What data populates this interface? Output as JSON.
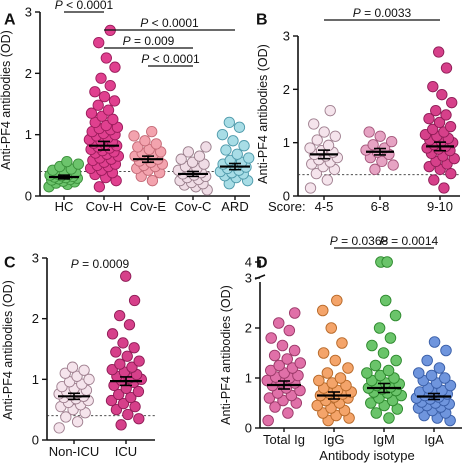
{
  "chart_data": [
    {
      "panel": "A",
      "type": "scatter",
      "ylabel": "Anti-PF4 antibodies (OD)",
      "ylim": [
        0,
        3
      ],
      "yticks": [
        "0",
        "1",
        "2",
        "3"
      ],
      "reference_line": 0.4,
      "categories": [
        "HC",
        "Cov-H",
        "Cov-E",
        "Cov-C",
        "ARD"
      ],
      "colors": {
        "HC": {
          "fill": "#6cc46c",
          "stroke": "#3a8f3a"
        },
        "Cov-H": {
          "fill": "#e0408f",
          "stroke": "#9c1c5c"
        },
        "Cov-E": {
          "fill": "#f3a3ae",
          "stroke": "#c46a77"
        },
        "Cov-C": {
          "fill": "#f0dde6",
          "stroke": "#9a7f8c"
        },
        "ARD": {
          "fill": "#a8dde6",
          "stroke": "#4f9aab"
        }
      },
      "groups": [
        {
          "name": "HC",
          "mean": 0.31,
          "sem": 0.03,
          "values": [
            0.15,
            0.19,
            0.21,
            0.23,
            0.24,
            0.26,
            0.27,
            0.28,
            0.29,
            0.3,
            0.31,
            0.32,
            0.33,
            0.34,
            0.35,
            0.36,
            0.38,
            0.4,
            0.42,
            0.44,
            0.48,
            0.52,
            0.56
          ]
        },
        {
          "name": "Cov-H",
          "mean": 0.82,
          "sem": 0.07,
          "values": [
            0.15,
            0.25,
            0.3,
            0.35,
            0.38,
            0.42,
            0.45,
            0.48,
            0.5,
            0.52,
            0.55,
            0.58,
            0.6,
            0.62,
            0.65,
            0.68,
            0.7,
            0.72,
            0.74,
            0.76,
            0.78,
            0.8,
            0.82,
            0.84,
            0.86,
            0.88,
            0.9,
            0.92,
            0.95,
            0.98,
            1.0,
            1.02,
            1.05,
            1.08,
            1.1,
            1.12,
            1.15,
            1.2,
            1.25,
            1.3,
            1.35,
            1.4,
            1.48,
            1.55,
            1.62,
            1.7,
            1.8,
            1.92,
            2.1,
            2.25,
            2.5,
            2.7
          ]
        },
        {
          "name": "Cov-E",
          "mean": 0.6,
          "sem": 0.05,
          "values": [
            0.25,
            0.32,
            0.38,
            0.42,
            0.45,
            0.48,
            0.5,
            0.52,
            0.55,
            0.57,
            0.6,
            0.62,
            0.65,
            0.68,
            0.7,
            0.72,
            0.76,
            0.8,
            0.85,
            0.9,
            0.98,
            1.05
          ]
        },
        {
          "name": "Cov-C",
          "mean": 0.36,
          "sem": 0.04,
          "values": [
            0.1,
            0.15,
            0.18,
            0.2,
            0.22,
            0.25,
            0.27,
            0.3,
            0.32,
            0.34,
            0.36,
            0.38,
            0.4,
            0.42,
            0.45,
            0.48,
            0.52,
            0.55,
            0.6,
            0.65,
            0.72,
            0.8
          ]
        },
        {
          "name": "ARD",
          "mean": 0.48,
          "sem": 0.05,
          "values": [
            0.2,
            0.25,
            0.3,
            0.33,
            0.36,
            0.38,
            0.4,
            0.42,
            0.45,
            0.47,
            0.5,
            0.52,
            0.55,
            0.58,
            0.62,
            0.68,
            0.75,
            0.82,
            0.9,
            1.0,
            1.12,
            1.2
          ]
        }
      ],
      "comparisons": [
        {
          "from": "HC",
          "to": "Cov-H",
          "label": "P < 0.0001"
        },
        {
          "from": "Cov-H",
          "to": "ARD",
          "label": "P < 0.0001"
        },
        {
          "from": "Cov-H",
          "to": "Cov-C",
          "label": "P = 0.009"
        },
        {
          "from": "Cov-E",
          "to": "Cov-C",
          "label": "P < 0.0001"
        }
      ]
    },
    {
      "panel": "B",
      "type": "scatter",
      "ylabel": "Anti-PF4 antibodies (OD)",
      "ylim": [
        0,
        3
      ],
      "yticks": [
        "0",
        "1",
        "2",
        "3"
      ],
      "reference_line": 0.4,
      "xlabel_prefix": "Score:",
      "categories": [
        "4-5",
        "6-8",
        "9-10"
      ],
      "colors": {
        "4-5": {
          "fill": "#f5e4ec",
          "stroke": "#a08090"
        },
        "6-8": {
          "fill": "#e6a3c3",
          "stroke": "#a5587c"
        },
        "9-10": {
          "fill": "#d6408a",
          "stroke": "#8e1c56"
        }
      },
      "groups": [
        {
          "name": "4-5",
          "mean": 0.78,
          "sem": 0.08,
          "values": [
            0.15,
            0.3,
            0.42,
            0.5,
            0.55,
            0.6,
            0.64,
            0.68,
            0.72,
            0.75,
            0.78,
            0.82,
            0.85,
            0.9,
            0.95,
            1.05,
            1.12,
            1.2,
            1.35,
            1.6
          ]
        },
        {
          "name": "6-8",
          "mean": 0.83,
          "sem": 0.06,
          "values": [
            0.5,
            0.58,
            0.65,
            0.72,
            0.78,
            0.82,
            0.86,
            0.9,
            0.96,
            1.02,
            1.12,
            1.2
          ]
        },
        {
          "name": "9-10",
          "mean": 0.93,
          "sem": 0.08,
          "values": [
            0.15,
            0.3,
            0.42,
            0.5,
            0.55,
            0.6,
            0.65,
            0.7,
            0.75,
            0.8,
            0.85,
            0.88,
            0.9,
            0.93,
            0.96,
            1.0,
            1.02,
            1.05,
            1.08,
            1.12,
            1.15,
            1.2,
            1.25,
            1.3,
            1.38,
            1.45,
            1.52,
            1.6,
            1.75,
            1.9,
            2.05,
            2.4,
            2.7
          ]
        }
      ],
      "comparisons": [
        {
          "from": "4-5",
          "to": "9-10",
          "label": "P = 0.0033"
        }
      ]
    },
    {
      "panel": "C",
      "type": "scatter",
      "ylabel": "Anti-PF4 antibodies (OD)",
      "ylim": [
        0,
        3
      ],
      "yticks": [
        "0",
        "1",
        "2",
        "3"
      ],
      "reference_line": 0.4,
      "categories": [
        "Non-ICU",
        "ICU"
      ],
      "colors": {
        "Non-ICU": {
          "fill": "#f5e4ec",
          "stroke": "#a08090"
        },
        "ICU": {
          "fill": "#d6408a",
          "stroke": "#8e1c56"
        }
      },
      "groups": [
        {
          "name": "Non-ICU",
          "mean": 0.72,
          "sem": 0.05,
          "values": [
            0.2,
            0.3,
            0.38,
            0.45,
            0.5,
            0.55,
            0.58,
            0.62,
            0.65,
            0.68,
            0.7,
            0.72,
            0.74,
            0.76,
            0.78,
            0.8,
            0.82,
            0.85,
            0.88,
            0.92,
            0.96,
            1.0,
            1.05,
            1.1,
            1.15,
            1.2
          ]
        },
        {
          "name": "ICU",
          "mean": 0.97,
          "sem": 0.07,
          "values": [
            0.25,
            0.35,
            0.42,
            0.5,
            0.55,
            0.6,
            0.65,
            0.7,
            0.75,
            0.8,
            0.85,
            0.9,
            0.95,
            0.98,
            1.0,
            1.02,
            1.05,
            1.08,
            1.12,
            1.16,
            1.2,
            1.25,
            1.3,
            1.38,
            1.45,
            1.52,
            1.6,
            1.75,
            1.9,
            2.05,
            2.3,
            2.7
          ]
        }
      ],
      "comparisons": [
        {
          "from": "Non-ICU",
          "to": "ICU",
          "label": "P = 0.0009",
          "style": "text-only"
        }
      ]
    },
    {
      "panel": "D",
      "type": "scatter",
      "ylabel": "Anti-PF4 antibodies (OD)",
      "xlabel": "Antibody isotype",
      "ylim": [
        0,
        4
      ],
      "axis_break": [
        3,
        4
      ],
      "yticks": [
        "0",
        "1",
        "2",
        "3",
        "4"
      ],
      "categories": [
        "Total Ig",
        "IgG",
        "IgM",
        "IgA"
      ],
      "colors": {
        "Total Ig": {
          "fill": "#e070a8",
          "stroke": "#9c3a6a"
        },
        "IgG": {
          "fill": "#f4a46a",
          "stroke": "#b86a2a"
        },
        "IgM": {
          "fill": "#6ac46a",
          "stroke": "#2f8a2f"
        },
        "IgA": {
          "fill": "#6f95dd",
          "stroke": "#3a5fa8"
        }
      },
      "groups": [
        {
          "name": "Total Ig",
          "mean": 0.86,
          "sem": 0.08,
          "values": [
            0.15,
            0.3,
            0.42,
            0.5,
            0.55,
            0.6,
            0.65,
            0.7,
            0.75,
            0.8,
            0.85,
            0.9,
            0.92,
            0.95,
            1.0,
            1.02,
            1.05,
            1.1,
            1.15,
            1.2,
            1.25,
            1.3,
            1.38,
            1.45,
            1.55,
            1.65,
            1.8,
            1.95,
            2.1,
            2.3
          ]
        },
        {
          "name": "IgG",
          "mean": 0.65,
          "sem": 0.07,
          "values": [
            0.15,
            0.2,
            0.25,
            0.3,
            0.35,
            0.4,
            0.45,
            0.5,
            0.55,
            0.6,
            0.62,
            0.65,
            0.68,
            0.7,
            0.72,
            0.75,
            0.8,
            0.85,
            0.9,
            0.95,
            1.0,
            1.1,
            1.2,
            1.35,
            1.5,
            1.7,
            2.0,
            2.35,
            2.55
          ]
        },
        {
          "name": "IgM",
          "mean": 0.8,
          "sem": 0.09,
          "values": [
            0.2,
            0.3,
            0.38,
            0.45,
            0.5,
            0.55,
            0.6,
            0.65,
            0.7,
            0.72,
            0.75,
            0.78,
            0.8,
            0.82,
            0.85,
            0.88,
            0.9,
            0.95,
            1.0,
            1.05,
            1.1,
            1.15,
            1.25,
            1.35,
            1.5,
            1.65,
            1.8,
            2.0,
            2.25,
            2.55,
            4.0,
            4.0
          ]
        },
        {
          "name": "IgA",
          "mean": 0.63,
          "sem": 0.06,
          "values": [
            0.15,
            0.2,
            0.25,
            0.3,
            0.35,
            0.4,
            0.42,
            0.45,
            0.48,
            0.5,
            0.52,
            0.55,
            0.58,
            0.6,
            0.62,
            0.65,
            0.68,
            0.7,
            0.72,
            0.75,
            0.8,
            0.85,
            0.9,
            0.95,
            1.0,
            1.05,
            1.1,
            1.2,
            1.35,
            1.55,
            1.72
          ]
        }
      ],
      "comparisons": [
        {
          "from": "IgG",
          "to": "IgM",
          "label": "P = 0.0368"
        },
        {
          "from": "IgM",
          "to": "IgA",
          "label": "P = 0.0014"
        }
      ]
    }
  ]
}
